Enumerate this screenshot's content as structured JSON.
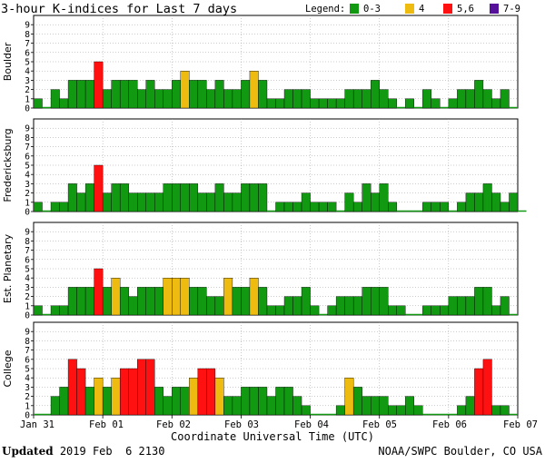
{
  "chart_data": {
    "type": "bar",
    "title": "3-hour K-indices for Last 7 days",
    "legend_title": "Legend:",
    "legend": [
      {
        "label": "0-3",
        "color": "#119911"
      },
      {
        "label": "4",
        "color": "#eebb11"
      },
      {
        "label": "5,6",
        "color": "#ff1111"
      },
      {
        "label": "7-9",
        "color": "#551199"
      }
    ],
    "xlabel": "Coordinate Universal Time (UTC)",
    "x_ticks": [
      "Jan 31",
      "Feb 01",
      "Feb 02",
      "Feb 03",
      "Feb 04",
      "Feb 05",
      "Feb 06",
      "Feb 07"
    ],
    "ylim": [
      0,
      9
    ],
    "y_ticks": [
      "0",
      "1",
      "2",
      "3",
      "4",
      "5",
      "6",
      "7",
      "8",
      "9"
    ],
    "series": [
      {
        "name": "Boulder",
        "values": [
          1,
          0,
          2,
          1,
          3,
          3,
          3,
          5,
          2,
          3,
          3,
          3,
          2,
          3,
          2,
          2,
          3,
          4,
          3,
          3,
          2,
          3,
          2,
          2,
          3,
          4,
          3,
          1,
          1,
          2,
          2,
          2,
          1,
          1,
          1,
          1,
          2,
          2,
          2,
          3,
          2,
          1,
          0,
          1,
          0,
          2,
          1,
          0,
          1,
          2,
          2,
          3,
          2,
          1,
          2,
          0
        ]
      },
      {
        "name": "Fredericksburg",
        "values": [
          1,
          0,
          1,
          1,
          3,
          2,
          3,
          5,
          2,
          3,
          3,
          2,
          2,
          2,
          2,
          3,
          3,
          3,
          3,
          2,
          2,
          3,
          2,
          2,
          3,
          3,
          3,
          0,
          1,
          1,
          1,
          2,
          1,
          1,
          1,
          0,
          2,
          1,
          3,
          2,
          3,
          1,
          0,
          0,
          0,
          1,
          1,
          1,
          0,
          1,
          2,
          2,
          3,
          2,
          1,
          2,
          0
        ]
      },
      {
        "name": "Est. Planetary",
        "values": [
          1,
          0,
          1,
          1,
          3,
          3,
          3,
          5,
          3,
          4,
          3,
          2,
          3,
          3,
          3,
          4,
          4,
          4,
          3,
          3,
          2,
          2,
          4,
          3,
          3,
          4,
          3,
          1,
          1,
          2,
          2,
          3,
          1,
          0,
          1,
          2,
          2,
          2,
          3,
          3,
          3,
          1,
          1,
          0,
          0,
          1,
          1,
          1,
          2,
          2,
          2,
          3,
          3,
          1,
          2,
          0
        ]
      },
      {
        "name": "College",
        "values": [
          0,
          0,
          2,
          3,
          6,
          5,
          3,
          4,
          3,
          4,
          5,
          5,
          6,
          6,
          3,
          2,
          3,
          3,
          4,
          5,
          5,
          4,
          2,
          2,
          3,
          3,
          3,
          2,
          3,
          3,
          2,
          1,
          0,
          0,
          0,
          1,
          4,
          3,
          2,
          2,
          2,
          1,
          1,
          2,
          1,
          0,
          0,
          0,
          0,
          1,
          2,
          5,
          6,
          1,
          1,
          0
        ]
      }
    ]
  },
  "footer": {
    "updated_label": "Updated",
    "updated_value": " 2019 Feb  6 2130",
    "credit": "NOAA/SWPC Boulder, CO USA"
  }
}
